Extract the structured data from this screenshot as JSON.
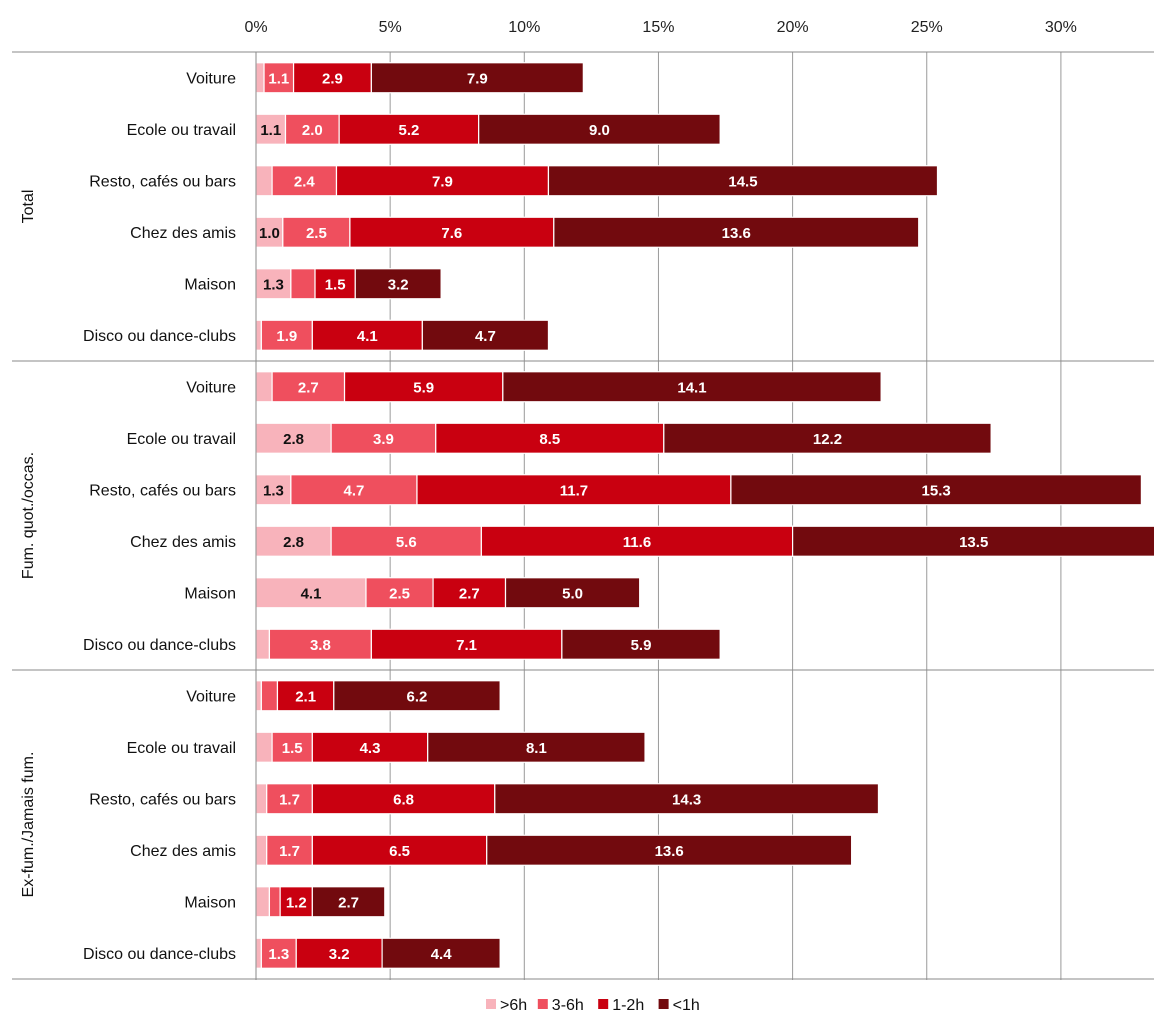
{
  "chart_data": {
    "type": "bar",
    "orientation": "horizontal",
    "stacked": true,
    "title": "",
    "xlabel": "",
    "ylabel": "",
    "xlim": [
      0,
      33.5
    ],
    "x_ticks": [
      "0%",
      "5%",
      "10%",
      "15%",
      "20%",
      "25%",
      "30%"
    ],
    "x_tick_values": [
      0,
      5,
      10,
      15,
      20,
      25,
      30
    ],
    "x_axis_position": "top",
    "grid": true,
    "legend_position": "bottom-center",
    "series": [
      {
        "name": ">6h",
        "color": "#f8b3bb"
      },
      {
        "name": "3-6h",
        "color": "#ef4f5e"
      },
      {
        "name": "1-2h",
        "color": "#c90010"
      },
      {
        "name": "<1h",
        "color": "#720a0e"
      }
    ],
    "groups": [
      {
        "name": "Total",
        "categories": [
          {
            "label": "Voiture",
            "values": [
              0.3,
              1.1,
              2.9,
              7.9
            ],
            "labels": [
              "",
              "1.1",
              "2.9",
              "7.9"
            ]
          },
          {
            "label": "Ecole ou travail",
            "values": [
              1.1,
              2.0,
              5.2,
              9.0
            ],
            "labels": [
              "1.1",
              "2.0",
              "5.2",
              "9.0"
            ]
          },
          {
            "label": "Resto, cafés ou bars",
            "values": [
              0.6,
              2.4,
              7.9,
              14.5
            ],
            "labels": [
              "",
              "2.4",
              "7.9",
              "14.5"
            ]
          },
          {
            "label": "Chez des amis",
            "values": [
              1.0,
              2.5,
              7.6,
              13.6
            ],
            "labels": [
              "1.0",
              "2.5",
              "7.6",
              "13.6"
            ]
          },
          {
            "label": "Maison",
            "values": [
              1.3,
              0.9,
              1.5,
              3.2
            ],
            "labels": [
              "1.3",
              "",
              "1.5",
              "3.2"
            ]
          },
          {
            "label": "Disco ou dance-clubs",
            "values": [
              0.2,
              1.9,
              4.1,
              4.7
            ],
            "labels": [
              "",
              "1.9",
              "4.1",
              "4.7"
            ]
          }
        ]
      },
      {
        "name": "Fum. quot./occas.",
        "categories": [
          {
            "label": "Voiture",
            "values": [
              0.6,
              2.7,
              5.9,
              14.1
            ],
            "labels": [
              "",
              "2.7",
              "5.9",
              "14.1"
            ]
          },
          {
            "label": "Ecole ou travail",
            "values": [
              2.8,
              3.9,
              8.5,
              12.2
            ],
            "labels": [
              "2.8",
              "3.9",
              "8.5",
              "12.2"
            ]
          },
          {
            "label": "Resto, cafés ou bars",
            "values": [
              1.3,
              4.7,
              11.7,
              15.3
            ],
            "labels": [
              "1.3",
              "4.7",
              "11.7",
              "15.3"
            ]
          },
          {
            "label": "Chez des amis",
            "values": [
              2.8,
              5.6,
              11.6,
              13.5
            ],
            "labels": [
              "2.8",
              "5.6",
              "11.6",
              "13.5"
            ]
          },
          {
            "label": "Maison",
            "values": [
              4.1,
              2.5,
              2.7,
              5.0
            ],
            "labels": [
              "4.1",
              "2.5",
              "2.7",
              "5.0"
            ]
          },
          {
            "label": "Disco ou dance-clubs",
            "values": [
              0.5,
              3.8,
              7.1,
              5.9
            ],
            "labels": [
              "",
              "3.8",
              "7.1",
              "5.9"
            ]
          }
        ]
      },
      {
        "name": "Ex-fum./Jamais fum.",
        "categories": [
          {
            "label": "Voiture",
            "values": [
              0.2,
              0.6,
              2.1,
              6.2
            ],
            "labels": [
              "",
              "",
              "2.1",
              "6.2"
            ]
          },
          {
            "label": "Ecole ou travail",
            "values": [
              0.6,
              1.5,
              4.3,
              8.1
            ],
            "labels": [
              "",
              "1.5",
              "4.3",
              "8.1"
            ]
          },
          {
            "label": "Resto, cafés ou bars",
            "values": [
              0.4,
              1.7,
              6.8,
              14.3
            ],
            "labels": [
              "",
              "1.7",
              "6.8",
              "14.3"
            ]
          },
          {
            "label": "Chez des amis",
            "values": [
              0.4,
              1.7,
              6.5,
              13.6
            ],
            "labels": [
              "",
              "1.7",
              "6.5",
              "13.6"
            ]
          },
          {
            "label": "Maison",
            "values": [
              0.5,
              0.4,
              1.2,
              2.7
            ],
            "labels": [
              "",
              "",
              "1.2",
              "2.7"
            ]
          },
          {
            "label": "Disco ou dance-clubs",
            "values": [
              0.2,
              1.3,
              3.2,
              4.4
            ],
            "labels": [
              "",
              "1.3",
              "3.2",
              "4.4"
            ]
          }
        ]
      }
    ]
  }
}
